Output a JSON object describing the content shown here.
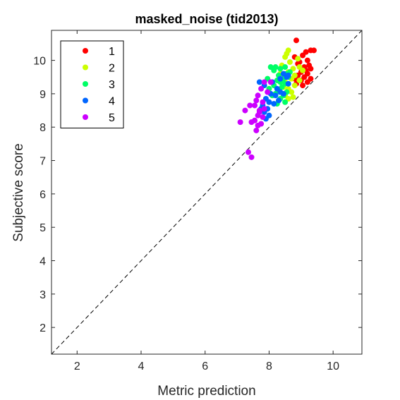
{
  "chart_data": {
    "type": "scatter",
    "title": "masked_noise (tid2013)",
    "xlabel": "Metric prediction",
    "ylabel": "Subjective score",
    "xlim": [
      1.2,
      10.9
    ],
    "ylim": [
      1.2,
      10.9
    ],
    "xticks": [
      2,
      4,
      6,
      8,
      10
    ],
    "yticks": [
      2,
      3,
      4,
      5,
      6,
      7,
      8,
      9,
      10
    ],
    "grid": false,
    "legend_position": "top-left",
    "reference_line": "y = x (dashed)",
    "series": [
      {
        "name": "1",
        "color": "#ff0000",
        "points": [
          [
            8.85,
            10.6
          ],
          [
            9.3,
            10.3
          ],
          [
            9.4,
            10.3
          ],
          [
            9.15,
            10.25
          ],
          [
            9.05,
            10.15
          ],
          [
            8.8,
            10.1
          ],
          [
            9.2,
            10.0
          ],
          [
            8.95,
            9.95
          ],
          [
            9.25,
            9.85
          ],
          [
            9.1,
            9.8
          ],
          [
            9.3,
            9.75
          ],
          [
            9.0,
            9.65
          ],
          [
            9.2,
            9.6
          ],
          [
            8.9,
            9.55
          ],
          [
            9.1,
            9.5
          ],
          [
            9.3,
            9.45
          ],
          [
            9.0,
            9.4
          ],
          [
            9.2,
            9.35
          ],
          [
            8.85,
            9.3
          ],
          [
            9.05,
            9.25
          ],
          [
            8.9,
            9.9
          ],
          [
            9.15,
            9.7
          ],
          [
            8.8,
            9.45
          ]
        ]
      },
      {
        "name": "2",
        "color": "#ccff00",
        "points": [
          [
            8.6,
            10.3
          ],
          [
            8.55,
            10.2
          ],
          [
            8.5,
            10.1
          ],
          [
            8.9,
            10.05
          ],
          [
            8.65,
            9.95
          ],
          [
            8.4,
            9.85
          ],
          [
            8.95,
            9.8
          ],
          [
            8.75,
            9.75
          ],
          [
            9.05,
            9.7
          ],
          [
            8.6,
            9.65
          ],
          [
            8.8,
            9.55
          ],
          [
            8.7,
            9.45
          ],
          [
            8.95,
            9.4
          ],
          [
            8.5,
            9.35
          ],
          [
            8.8,
            9.25
          ],
          [
            8.6,
            9.15
          ],
          [
            8.7,
            9.05
          ],
          [
            8.5,
            8.95
          ],
          [
            8.75,
            8.9
          ],
          [
            8.6,
            8.85
          ],
          [
            8.35,
            9.6
          ],
          [
            8.45,
            9.2
          ]
        ]
      },
      {
        "name": "3",
        "color": "#00ff66",
        "points": [
          [
            8.05,
            9.8
          ],
          [
            8.2,
            9.8
          ],
          [
            8.5,
            9.8
          ],
          [
            8.35,
            9.75
          ],
          [
            8.15,
            9.7
          ],
          [
            8.65,
            9.65
          ],
          [
            8.55,
            9.6
          ],
          [
            8.3,
            9.55
          ],
          [
            8.6,
            9.5
          ],
          [
            8.45,
            9.45
          ],
          [
            8.25,
            9.4
          ],
          [
            8.35,
            9.35
          ],
          [
            8.5,
            9.3
          ],
          [
            8.15,
            9.25
          ],
          [
            8.4,
            9.2
          ],
          [
            8.3,
            9.1
          ],
          [
            8.55,
            9.05
          ],
          [
            8.2,
            9.0
          ],
          [
            8.45,
            8.95
          ],
          [
            8.1,
            8.95
          ],
          [
            8.35,
            8.85
          ],
          [
            8.5,
            8.75
          ],
          [
            8.0,
            9.15
          ],
          [
            8.25,
            8.7
          ],
          [
            7.95,
            9.45
          ]
        ]
      },
      {
        "name": "4",
        "color": "#0066ff",
        "points": [
          [
            7.7,
            9.35
          ],
          [
            7.85,
            9.25
          ],
          [
            8.1,
            9.35
          ],
          [
            8.35,
            9.45
          ],
          [
            8.55,
            9.5
          ],
          [
            8.45,
            9.6
          ],
          [
            8.6,
            9.55
          ],
          [
            8.25,
            9.15
          ],
          [
            8.05,
            9.0
          ],
          [
            8.2,
            8.95
          ],
          [
            8.35,
            9.05
          ],
          [
            7.9,
            8.85
          ],
          [
            8.0,
            8.75
          ],
          [
            8.15,
            8.7
          ],
          [
            7.8,
            8.65
          ],
          [
            7.95,
            8.55
          ],
          [
            7.85,
            8.45
          ],
          [
            8.0,
            8.35
          ],
          [
            7.9,
            8.25
          ],
          [
            8.3,
            8.8
          ],
          [
            8.45,
            9.0
          ],
          [
            8.6,
            9.3
          ],
          [
            7.75,
            8.55
          ]
        ]
      },
      {
        "name": "5",
        "color": "#cc00ff",
        "points": [
          [
            7.85,
            9.35
          ],
          [
            8.05,
            9.35
          ],
          [
            7.75,
            9.15
          ],
          [
            7.65,
            8.95
          ],
          [
            7.95,
            9.05
          ],
          [
            7.6,
            8.8
          ],
          [
            7.8,
            8.75
          ],
          [
            7.55,
            8.65
          ],
          [
            7.85,
            8.55
          ],
          [
            7.7,
            8.45
          ],
          [
            7.25,
            8.5
          ],
          [
            7.4,
            8.65
          ],
          [
            7.65,
            8.35
          ],
          [
            7.8,
            8.3
          ],
          [
            7.55,
            8.2
          ],
          [
            7.75,
            8.1
          ],
          [
            7.45,
            8.15
          ],
          [
            7.65,
            8.05
          ],
          [
            7.1,
            8.15
          ],
          [
            7.6,
            7.9
          ],
          [
            7.35,
            7.25
          ],
          [
            7.45,
            7.1
          ],
          [
            7.7,
            8.5
          ]
        ]
      }
    ]
  }
}
